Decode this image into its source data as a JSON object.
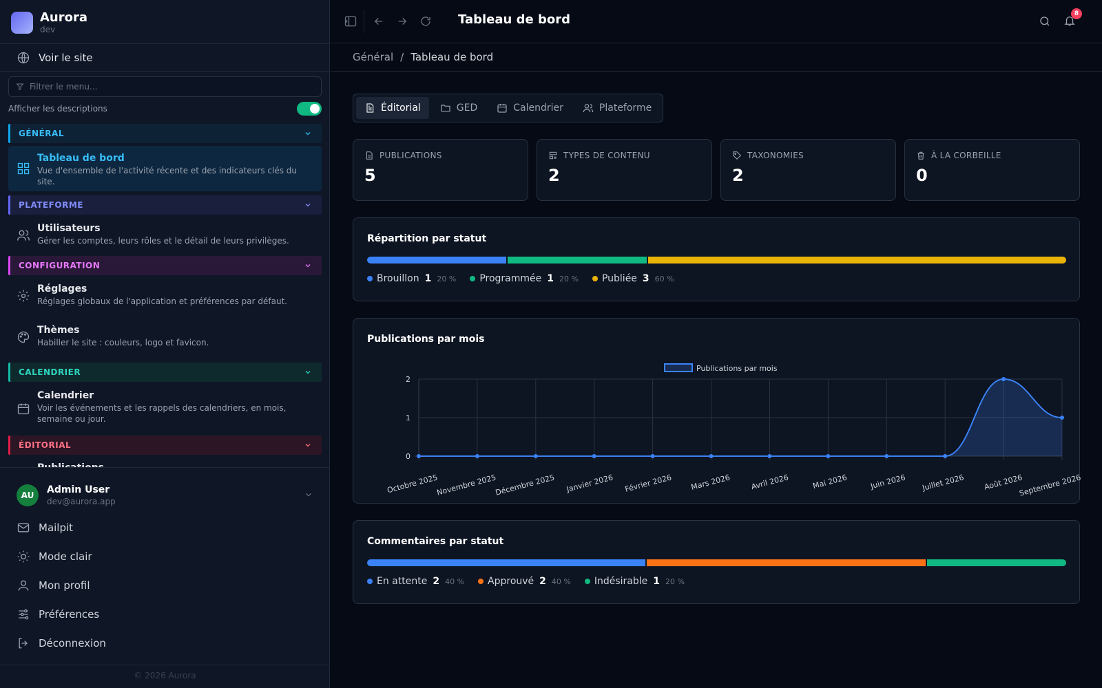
{
  "app": {
    "name": "Aurora",
    "env": "dev"
  },
  "sidebar": {
    "view_site": "Voir le site",
    "filter_placeholder": "Filtrer le menu...",
    "show_descriptions": "Afficher les descriptions",
    "sections": {
      "general": "GÉNÉRAL",
      "plateforme": "PLATEFORME",
      "configuration": "CONFIGURATION",
      "calendrier": "CALENDRIER",
      "editorial": "ÉDITORIAL"
    },
    "items": {
      "tableau": {
        "label": "Tableau de bord",
        "desc": "Vue d'ensemble de l'activité récente et des indicateurs clés du site."
      },
      "utilisateurs": {
        "label": "Utilisateurs",
        "desc": "Gérer les comptes, leurs rôles et le détail de leurs privilèges."
      },
      "reglages": {
        "label": "Réglages",
        "desc": "Réglages globaux de l'application et préférences par défaut."
      },
      "themes": {
        "label": "Thèmes",
        "desc": "Habiller le site : couleurs, logo et favicon."
      },
      "calendrier": {
        "label": "Calendrier",
        "desc": "Voir les événements et les rappels des calendriers, en mois, semaine ou jour."
      },
      "publications": {
        "label": "Publications"
      }
    },
    "user": {
      "initials": "AU",
      "name": "Admin User",
      "email": "dev@aurora.app"
    },
    "footer": {
      "mailpit": "Mailpit",
      "mode_clair": "Mode clair",
      "profil": "Mon profil",
      "preferences": "Préférences",
      "logout": "Déconnexion"
    },
    "copyright": "© 2026 Aurora"
  },
  "header": {
    "title": "Tableau de bord",
    "notifications": "8"
  },
  "breadcrumb": {
    "root": "Général",
    "sep": "/",
    "current": "Tableau de bord"
  },
  "tabs": [
    "Éditorial",
    "GED",
    "Calendrier",
    "Plateforme"
  ],
  "stats": [
    {
      "label": "PUBLICATIONS",
      "value": "5"
    },
    {
      "label": "TYPES DE CONTENU",
      "value": "2"
    },
    {
      "label": "TAXONOMIES",
      "value": "2"
    },
    {
      "label": "À LA CORBEILLE",
      "value": "0"
    }
  ],
  "status_panel": {
    "title": "Répartition par statut",
    "items": [
      {
        "label": "Brouillon",
        "count": "1",
        "pct": "20 %",
        "fraction": 0.2,
        "color": "#3b82f6"
      },
      {
        "label": "Programmée",
        "count": "1",
        "pct": "20 %",
        "fraction": 0.2,
        "color": "#10b981"
      },
      {
        "label": "Publiée",
        "count": "3",
        "pct": "60 %",
        "fraction": 0.6,
        "color": "#eab308"
      }
    ]
  },
  "chart_panel": {
    "title": "Publications par mois"
  },
  "comments_panel": {
    "title": "Commentaires par statut",
    "items": [
      {
        "label": "En attente",
        "count": "2",
        "pct": "40 %",
        "fraction": 0.4,
        "color": "#3b82f6"
      },
      {
        "label": "Approuvé",
        "count": "2",
        "pct": "40 %",
        "fraction": 0.4,
        "color": "#f97316"
      },
      {
        "label": "Indésirable",
        "count": "1",
        "pct": "20 %",
        "fraction": 0.2,
        "color": "#10b981"
      }
    ]
  },
  "chart_data": {
    "type": "area",
    "title": "",
    "xlabel": "",
    "ylabel": "",
    "categories": [
      "Octobre 2025",
      "Novembre 2025",
      "Décembre 2025",
      "Janvier 2026",
      "Février 2026",
      "Mars 2026",
      "Avril 2026",
      "Mai 2026",
      "Juin 2026",
      "Juillet 2026",
      "Août 2026",
      "Septembre 2026"
    ],
    "series": [
      {
        "name": "Publications par mois",
        "values": [
          0,
          0,
          0,
          0,
          0,
          0,
          0,
          0,
          0,
          0,
          2,
          1
        ],
        "color": "#3b82f6"
      }
    ],
    "ylim": [
      0,
      2
    ],
    "yticks": [
      "0",
      "1",
      "2"
    ],
    "grid": true,
    "legend": "top"
  }
}
